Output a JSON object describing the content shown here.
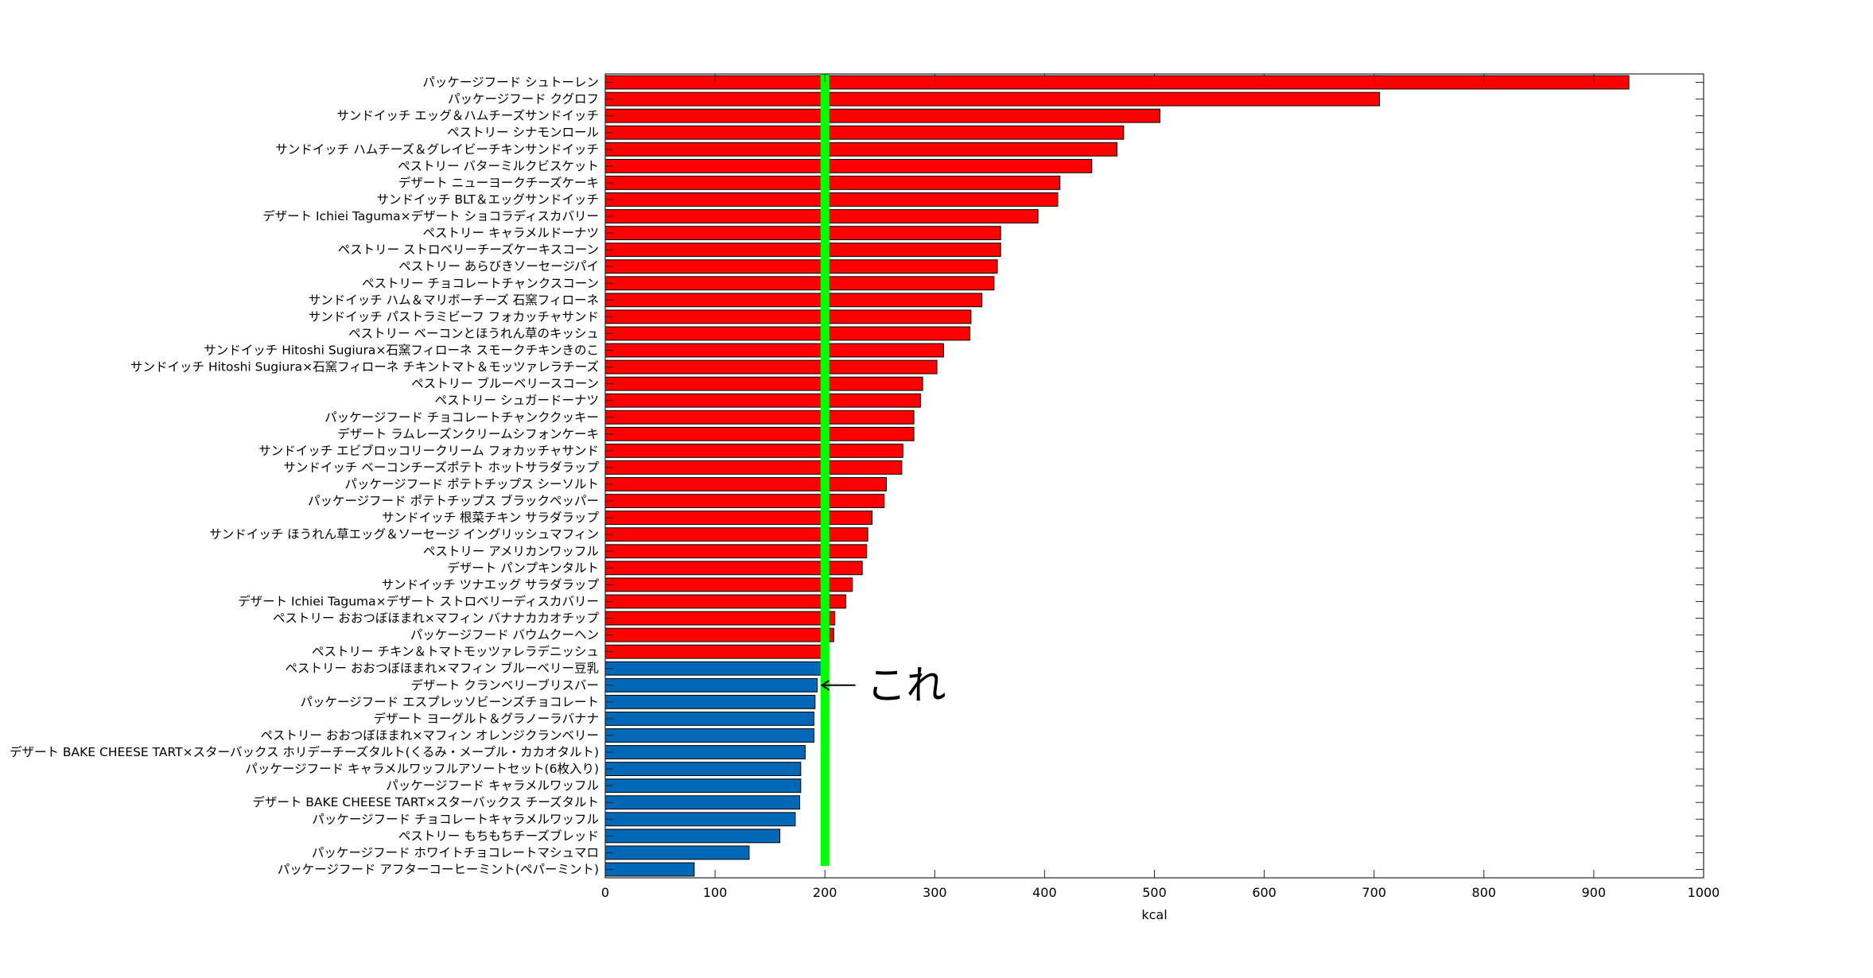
{
  "chart_data": {
    "type": "bar",
    "orientation": "horizontal",
    "categories": [
      "パッケージフード シュトーレン",
      "パッケージフード クグロフ",
      "サンドイッチ エッグ＆ハムチーズサンドイッチ",
      "ペストリー シナモンロール",
      "サンドイッチ ハムチーズ＆グレイビーチキンサンドイッチ",
      "ペストリー バターミルクビスケット",
      "デザート ニューヨークチーズケーキ",
      "サンドイッチ BLT＆エッグサンドイッチ",
      "デザート Ichiei Taguma×デザート ショコラディスカバリー",
      "ペストリー キャラメルドーナツ",
      "ペストリー ストロベリーチーズケーキスコーン",
      "ペストリー あらびきソーセージパイ",
      "ペストリー チョコレートチャンクスコーン",
      "サンドイッチ ハム＆マリボーチーズ 石窯フィローネ",
      "サンドイッチ パストラミビーフ フォカッチャサンド",
      "ペストリー ベーコンとほうれん草のキッシュ",
      "サンドイッチ Hitoshi Sugiura×石窯フィローネ スモークチキンきのこ",
      "サンドイッチ Hitoshi Sugiura×石窯フィローネ チキントマト＆モッツァレラチーズ",
      "ペストリー ブルーベリースコーン",
      "ペストリー シュガードーナツ",
      "パッケージフード チョコレートチャンククッキー",
      "デザート ラムレーズンクリームシフォンケーキ",
      "サンドイッチ エビブロッコリークリーム フォカッチャサンド",
      "サンドイッチ ベーコンチーズポテト ホットサラダラップ",
      "パッケージフード ポテトチップス シーソルト",
      "パッケージフード ポテトチップス ブラックペッパー",
      "サンドイッチ 根菜チキン サラダラップ",
      "サンドイッチ ほうれん草エッグ＆ソーセージ イングリッシュマフィン",
      "ペストリー アメリカンワッフル",
      "デザート パンプキンタルト",
      "サンドイッチ ツナエッグ サラダラップ",
      "デザート Ichiei Taguma×デザート ストロベリーディスカバリー",
      "ペストリー おおつぼほまれ×マフィン バナナカカオチップ",
      "パッケージフード バウムクーヘン",
      "ペストリー チキン＆トマトモッツァレラデニッシュ",
      "ペストリー おおつぼほまれ×マフィン ブルーベリー豆乳",
      "デザート クランベリーブリスバー",
      "パッケージフード エスプレッソビーンズチョコレート",
      "デザート ヨーグルト＆グラノーラバナナ",
      "ペストリー おおつぼほまれ×マフィン オレンジクランベリー",
      "デザート BAKE CHEESE TART×スターバックス ホリデーチーズタルト(くるみ・メープル・カカオタルト)",
      "パッケージフード キャラメルワッフルアソートセット(6枚入り)",
      "パッケージフード キャラメルワッフル",
      "デザート BAKE CHEESE TART×スターバックス チーズタルト",
      "パッケージフード チョコレートキャラメルワッフル",
      "ペストリー もちもちチーズブレッド",
      "パッケージフード ホワイトチョコレートマシュマロ",
      "パッケージフード アフターコーヒーミント(ペパーミント)"
    ],
    "values": [
      932,
      705,
      505,
      472,
      466,
      443,
      414,
      412,
      394,
      360,
      360,
      357,
      354,
      343,
      333,
      332,
      308,
      302,
      289,
      287,
      281,
      281,
      271,
      270,
      256,
      254,
      243,
      239,
      238,
      234,
      225,
      219,
      209,
      208,
      198,
      197,
      193,
      191,
      190,
      190,
      182,
      178,
      178,
      177,
      173,
      159,
      131,
      81
    ],
    "bar_colors": {
      "above_threshold": "#ff0000",
      "below_threshold": "#0068b7",
      "threshold": 198
    },
    "reference_line": {
      "x": 200,
      "color": "#00ff00"
    },
    "annotation": {
      "text": "これ",
      "target_category_index": 36
    },
    "xlim": [
      0,
      1000
    ],
    "xticks": [
      0,
      100,
      200,
      300,
      400,
      500,
      600,
      700,
      800,
      900,
      1000
    ],
    "xlabel": "kcal",
    "ylabel": "",
    "title": "",
    "grid": "off",
    "legend": "none"
  }
}
